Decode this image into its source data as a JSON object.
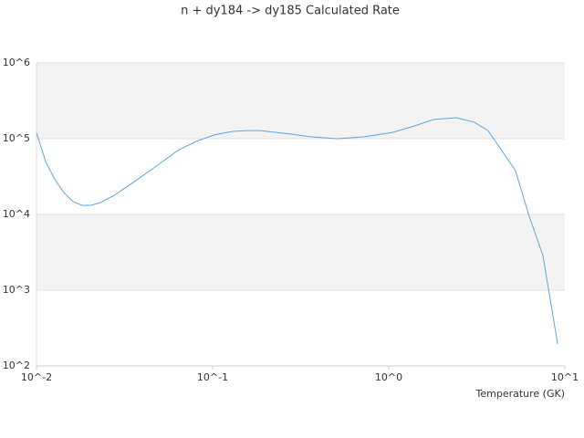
{
  "chart_data": {
    "type": "line",
    "title": "n + dy184 -> dy185 Calculated Rate",
    "xlabel": "Temperature (GK)",
    "xscale": "log",
    "yscale": "log",
    "xlim": [
      0.01,
      10
    ],
    "ylim": [
      100,
      1000000
    ],
    "xticks": [
      {
        "value": 0.01,
        "label": "10^-2"
      },
      {
        "value": 0.1,
        "label": "10^-1"
      },
      {
        "value": 1,
        "label": "10^0"
      },
      {
        "value": 10,
        "label": "10^1"
      }
    ],
    "yticks": [
      {
        "value": 100,
        "label": "10^2"
      },
      {
        "value": 1000,
        "label": "10^3"
      },
      {
        "value": 10000,
        "label": "10^4"
      },
      {
        "value": 100000,
        "label": "10^5"
      },
      {
        "value": 1000000,
        "label": "10^6"
      }
    ],
    "grid": true,
    "band_color": "#f3f3f3",
    "x": [
      0.01,
      0.0113,
      0.0127,
      0.0143,
      0.0161,
      0.0181,
      0.0204,
      0.023,
      0.0276,
      0.035,
      0.047,
      0.0635,
      0.0805,
      0.102,
      0.13,
      0.155,
      0.186,
      0.28,
      0.36,
      0.51,
      0.73,
      1.05,
      1.41,
      1.79,
      2.42,
      3.06,
      3.66,
      4.38,
      5.24,
      6.27,
      7.5,
      9.1
    ],
    "series": [
      {
        "name": "rate",
        "color": "#5aa7e0",
        "values": [
          120000,
          49000,
          29000,
          19500,
          14800,
          13200,
          13200,
          14300,
          17900,
          26000,
          42000,
          70000,
          92000,
          112000,
          125000,
          128000,
          128000,
          115000,
          106000,
          100000,
          106000,
          121000,
          148000,
          179000,
          189000,
          165000,
          128000,
          70000,
          38000,
          9500,
          2900,
          195
        ]
      }
    ]
  }
}
